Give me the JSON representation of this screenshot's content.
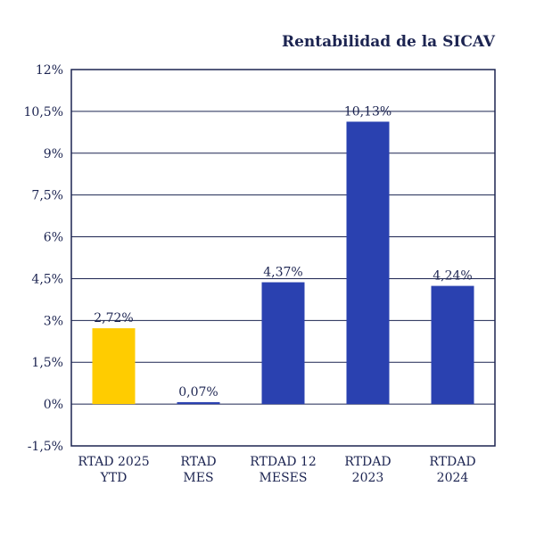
{
  "chart_data": {
    "type": "bar",
    "title": "Rentabilidad de la SICAV",
    "categories": [
      [
        "RTAD 2025",
        "YTD"
      ],
      [
        "RTAD",
        "MES"
      ],
      [
        "RTDAD 12",
        "MESES"
      ],
      [
        "RTDAD",
        "2023"
      ],
      [
        "RTDAD",
        "2024"
      ]
    ],
    "values": [
      2.72,
      0.07,
      4.37,
      10.13,
      4.24
    ],
    "value_labels": [
      "2,72%",
      "0,07%",
      "4,37%",
      "10,13%",
      "4,24%"
    ],
    "bar_colors": [
      "#FFCC00",
      "#2A41B0",
      "#2A41B0",
      "#2A41B0",
      "#2A41B0"
    ],
    "ylim": [
      -1.5,
      12
    ],
    "yticks": [
      {
        "value": -1.5,
        "label": "-1,5%"
      },
      {
        "value": 0,
        "label": "0%"
      },
      {
        "value": 1.5,
        "label": "1,5%"
      },
      {
        "value": 3,
        "label": "3%"
      },
      {
        "value": 4.5,
        "label": "4,5%"
      },
      {
        "value": 6,
        "label": "6%"
      },
      {
        "value": 7.5,
        "label": "7,5%"
      },
      {
        "value": 9,
        "label": "9%"
      },
      {
        "value": 10.5,
        "label": "10,5%"
      },
      {
        "value": 12,
        "label": "12%"
      }
    ],
    "grid": true,
    "xlabel": "",
    "ylabel": "",
    "colors": {
      "text": "#1C2451",
      "grid": "#1C2451",
      "frame": "#1C2451"
    }
  }
}
